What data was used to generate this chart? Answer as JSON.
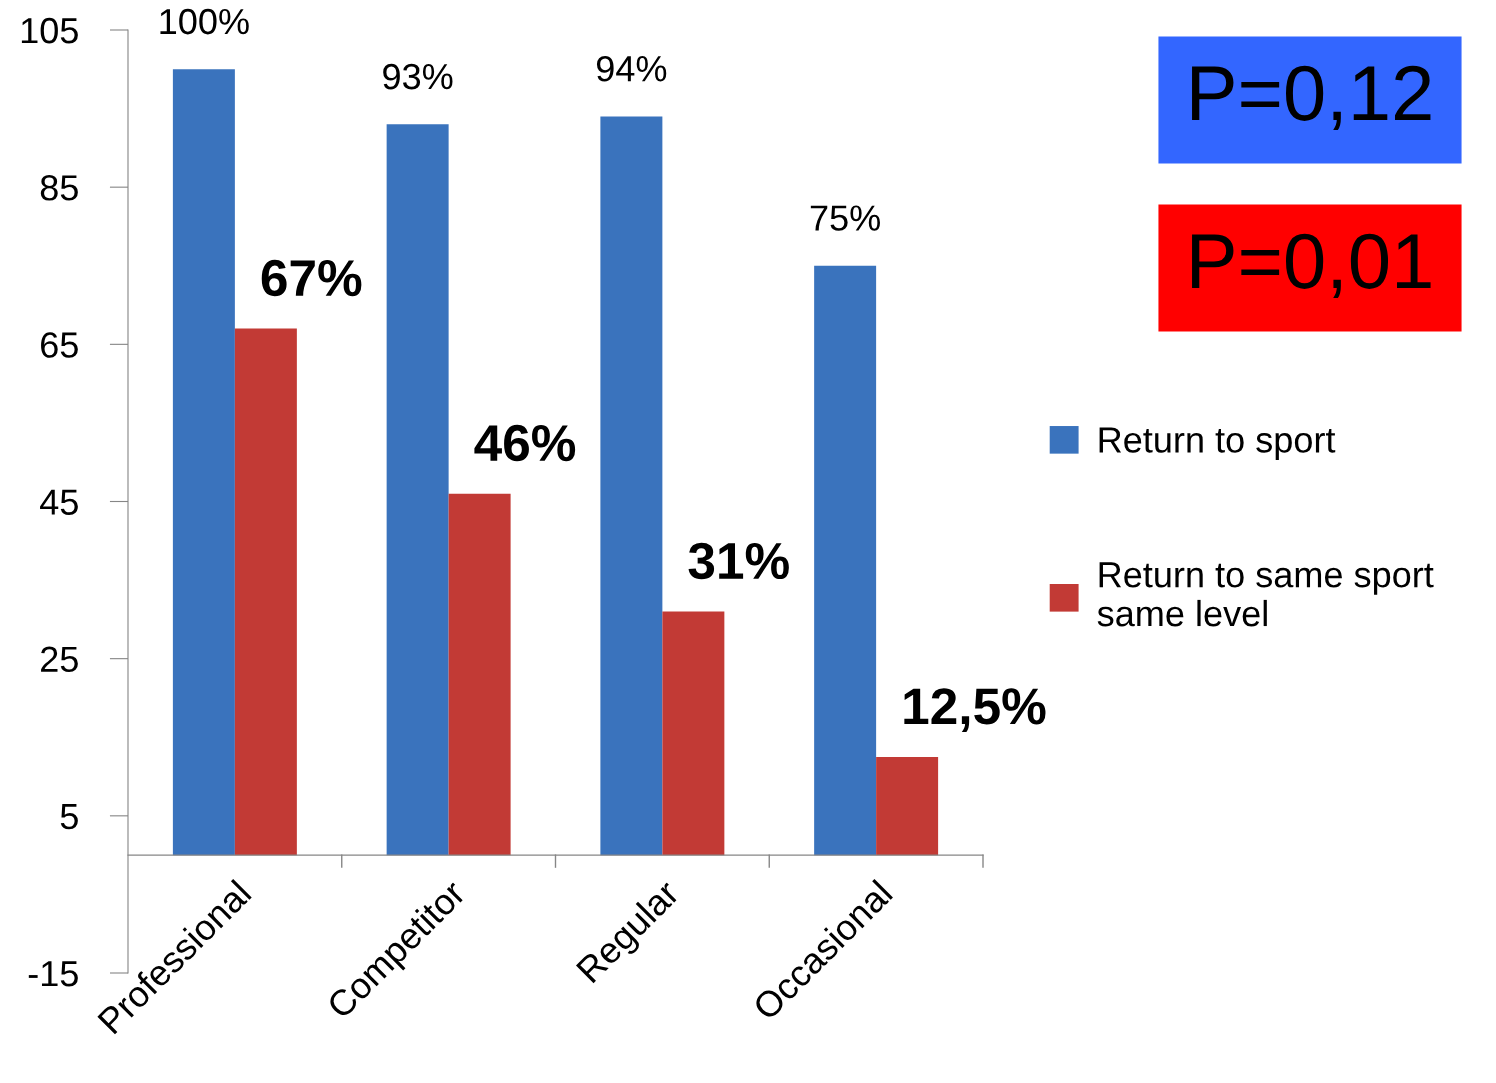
{
  "chart_data": {
    "type": "bar",
    "categories": [
      "Professional",
      "Competitor",
      "Regular",
      "Occasional"
    ],
    "series": [
      {
        "name": "Return to sport",
        "color": "#3a73bd",
        "values": [
          100,
          93,
          94,
          75
        ],
        "value_labels": [
          "100%",
          "93%",
          "94%",
          "75%"
        ]
      },
      {
        "name": "Return to same sport\nsame level",
        "color": "#c23a35",
        "values": [
          67,
          46,
          31,
          12.5
        ],
        "value_labels": [
          "67%",
          "46%",
          "31%",
          "12,5%"
        ]
      }
    ],
    "ylim": [
      -15,
      105
    ],
    "yticks": [
      -15,
      5,
      25,
      45,
      65,
      85,
      105
    ],
    "legend": "right",
    "annotations": [
      "P=0,12",
      "P=0,01"
    ]
  }
}
